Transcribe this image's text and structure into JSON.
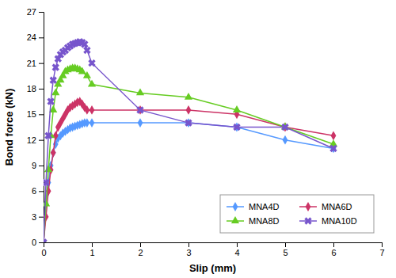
{
  "chart_data": {
    "type": "line",
    "xlabel": "Slip (mm)",
    "ylabel": "Bond force (kN)",
    "xlim": [
      0,
      7
    ],
    "ylim": [
      0,
      27
    ],
    "xticks": [
      0,
      1,
      2,
      3,
      4,
      5,
      6,
      7
    ],
    "yticks": [
      0,
      3,
      6,
      9,
      12,
      15,
      18,
      21,
      24,
      27
    ],
    "grid": false,
    "legend": "lower right",
    "series": [
      {
        "name": "MNA4D",
        "color": "#5599FF",
        "marker": "diamond",
        "x": [
          0,
          0.05,
          0.1,
          0.15,
          0.2,
          0.25,
          0.3,
          0.35,
          0.4,
          0.45,
          0.5,
          0.55,
          0.6,
          0.65,
          0.7,
          0.75,
          0.8,
          0.85,
          0.9,
          1.0,
          2.0,
          3.0,
          4.0,
          5.0,
          6.0
        ],
        "values": [
          0,
          4.5,
          7.0,
          9.0,
          10.5,
          11.5,
          12.2,
          12.5,
          12.8,
          13.0,
          13.2,
          13.4,
          13.5,
          13.6,
          13.7,
          13.8,
          13.9,
          14.0,
          14.0,
          14.0,
          14.0,
          14.0,
          13.5,
          12.0,
          11.0
        ]
      },
      {
        "name": "MNA6D",
        "color": "#CC3366",
        "marker": "diamond",
        "x": [
          0,
          0.05,
          0.1,
          0.15,
          0.2,
          0.25,
          0.3,
          0.35,
          0.4,
          0.45,
          0.5,
          0.55,
          0.6,
          0.65,
          0.7,
          0.75,
          0.8,
          0.85,
          0.9,
          1.0,
          2.0,
          3.0,
          4.0,
          5.0,
          6.0
        ],
        "values": [
          0,
          3.0,
          6.0,
          8.5,
          10.5,
          12.5,
          13.5,
          14.0,
          14.5,
          15.0,
          15.5,
          15.8,
          16.0,
          16.2,
          16.4,
          16.5,
          16.2,
          15.8,
          15.5,
          15.5,
          15.5,
          15.5,
          15.0,
          13.5,
          12.5
        ]
      },
      {
        "name": "MNA8D",
        "color": "#66CC22",
        "marker": "triangle",
        "x": [
          0,
          0.05,
          0.1,
          0.15,
          0.2,
          0.25,
          0.3,
          0.35,
          0.4,
          0.45,
          0.5,
          0.55,
          0.6,
          0.65,
          0.7,
          0.75,
          0.8,
          0.9,
          1.0,
          2.0,
          3.0,
          4.0,
          5.0,
          6.0
        ],
        "values": [
          0,
          4.5,
          8.5,
          12.5,
          15.5,
          17.5,
          18.5,
          19.0,
          19.5,
          20.0,
          20.2,
          20.3,
          20.4,
          20.4,
          20.3,
          20.2,
          20.0,
          19.5,
          18.5,
          17.5,
          17.0,
          15.5,
          13.5,
          11.5
        ]
      },
      {
        "name": "MNA10D",
        "color": "#7755CC",
        "marker": "x",
        "x": [
          0,
          0.05,
          0.1,
          0.15,
          0.2,
          0.25,
          0.3,
          0.35,
          0.4,
          0.45,
          0.5,
          0.55,
          0.6,
          0.65,
          0.7,
          0.75,
          0.8,
          0.85,
          0.9,
          1.0,
          2.0,
          3.0,
          4.0,
          5.0,
          6.0
        ],
        "values": [
          0,
          7.0,
          12.5,
          16.5,
          19.0,
          20.5,
          21.5,
          22.0,
          22.3,
          22.5,
          22.8,
          23.0,
          23.2,
          23.3,
          23.4,
          23.5,
          23.4,
          23.2,
          22.5,
          21.0,
          15.5,
          14.0,
          13.5,
          13.5,
          11.0
        ]
      }
    ]
  }
}
